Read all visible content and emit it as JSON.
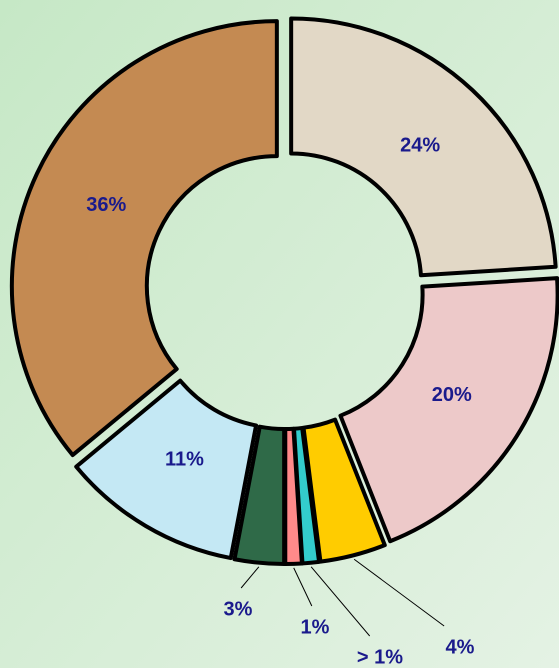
{
  "chart_data": {
    "type": "donut",
    "values": [
      24,
      20,
      4,
      1,
      1,
      3,
      11,
      36
    ],
    "value_labels": [
      "24%",
      "20%",
      "4%",
      "> 1%",
      "1%",
      "3%",
      "11%",
      "36%"
    ],
    "colors": [
      "#e2d8c6",
      "#edc9c9",
      "#ffcc00",
      "#33cccc",
      "#ff8a8a",
      "#2f6a48",
      "#c4e8f4",
      "#c48a52"
    ]
  }
}
